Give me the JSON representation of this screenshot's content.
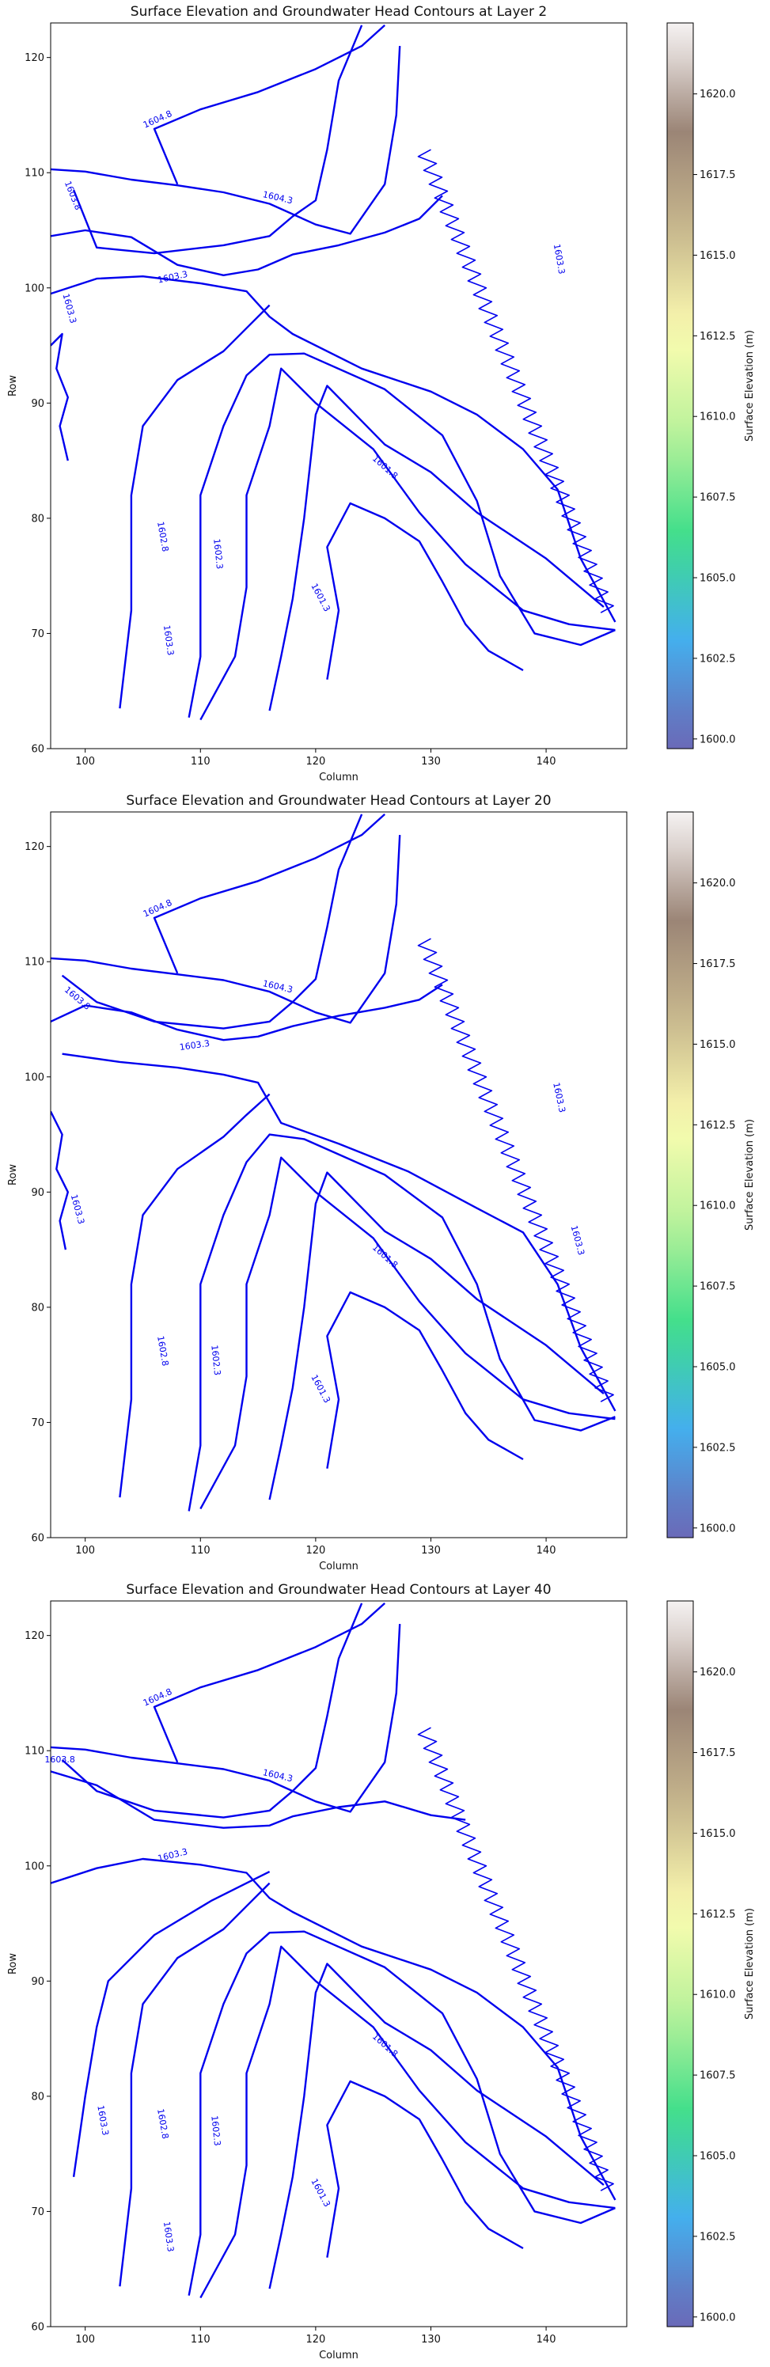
{
  "colormap": {
    "stops": [
      "#6a6ab8",
      "#43b1ee",
      "#3ede8a",
      "#b8f29a",
      "#fdfdb1",
      "#c9b98e",
      "#9b8476",
      "#f5f2f2"
    ],
    "vmin": 1600.0,
    "vmax": 1622.0
  },
  "contour_color": "#0000ee",
  "chart_data": [
    {
      "type": "heatmap",
      "title": "Surface Elevation and Groundwater Head Contours at Layer 2",
      "xlabel": "Column",
      "ylabel": "Row",
      "xlim": [
        97,
        147
      ],
      "ylim": [
        60,
        123
      ],
      "xticks": [
        100,
        110,
        120,
        130,
        140
      ],
      "yticks": [
        60,
        70,
        80,
        90,
        100,
        110,
        120
      ],
      "colorbar": {
        "label": "Surface Elevation (m)",
        "range": [
          1599.7,
          1622.2
        ],
        "ticks": [
          "1600.0",
          "1602.5",
          "1605.0",
          "1607.5",
          "1610.0",
          "1612.5",
          "1615.0",
          "1617.5",
          "1620.0"
        ]
      },
      "contour_labels": [
        {
          "text": "1604.8",
          "x": 106.3,
          "y": 114.6,
          "angle": -24
        },
        {
          "text": "1604.3",
          "x": 116.7,
          "y": 107.8,
          "angle": 13
        },
        {
          "text": "1603.8",
          "x": 98.9,
          "y": 108.0,
          "angle": 68
        },
        {
          "text": "1603.3",
          "x": 107.6,
          "y": 100.9,
          "angle": -12
        },
        {
          "text": "1603.3",
          "x": 98.6,
          "y": 98.2,
          "angle": 75
        },
        {
          "text": "1603.3",
          "x": 141.1,
          "y": 102.5,
          "angle": 80
        },
        {
          "text": "1601.8",
          "x": 126.0,
          "y": 84.4,
          "angle": 42
        },
        {
          "text": "1602.8",
          "x": 106.7,
          "y": 78.4,
          "angle": 80
        },
        {
          "text": "1602.3",
          "x": 111.5,
          "y": 76.9,
          "angle": 84
        },
        {
          "text": "1603.3",
          "x": 107.2,
          "y": 69.4,
          "angle": 82
        },
        {
          "text": "1601.3",
          "x": 120.4,
          "y": 73.1,
          "angle": 62
        }
      ]
    },
    {
      "type": "heatmap",
      "title": "Surface Elevation and Groundwater Head Contours at Layer 20",
      "xlabel": "Column",
      "ylabel": "Row",
      "xlim": [
        97,
        147
      ],
      "ylim": [
        60,
        123
      ],
      "xticks": [
        100,
        110,
        120,
        130,
        140
      ],
      "yticks": [
        60,
        70,
        80,
        90,
        100,
        110,
        120
      ],
      "colorbar": {
        "label": "Surface Elevation (m)",
        "range": [
          1599.7,
          1622.2
        ],
        "ticks": [
          "1600.0",
          "1602.5",
          "1605.0",
          "1607.5",
          "1610.0",
          "1612.5",
          "1615.0",
          "1617.5",
          "1620.0"
        ]
      },
      "contour_labels": [
        {
          "text": "1604.8",
          "x": 106.3,
          "y": 114.6,
          "angle": -24
        },
        {
          "text": "1604.3",
          "x": 116.7,
          "y": 107.8,
          "angle": 13
        },
        {
          "text": "1603.8",
          "x": 99.3,
          "y": 106.8,
          "angle": 40
        },
        {
          "text": "1603.3",
          "x": 109.5,
          "y": 102.7,
          "angle": -8
        },
        {
          "text": "1603.3",
          "x": 141.1,
          "y": 98.2,
          "angle": 78
        },
        {
          "text": "1603.3",
          "x": 99.3,
          "y": 88.5,
          "angle": 75
        },
        {
          "text": "1603.3",
          "x": 142.7,
          "y": 85.8,
          "angle": 75
        },
        {
          "text": "1601.8",
          "x": 126.0,
          "y": 84.4,
          "angle": 42
        },
        {
          "text": "1602.8",
          "x": 106.7,
          "y": 76.2,
          "angle": 80
        },
        {
          "text": "1602.3",
          "x": 111.3,
          "y": 75.4,
          "angle": 84
        },
        {
          "text": "1601.3",
          "x": 120.4,
          "y": 72.9,
          "angle": 62
        }
      ]
    },
    {
      "type": "heatmap",
      "title": "Surface Elevation and Groundwater Head Contours at Layer 40",
      "xlabel": "Column",
      "ylabel": "Row",
      "xlim": [
        97,
        147
      ],
      "ylim": [
        60,
        123
      ],
      "xticks": [
        100,
        110,
        120,
        130,
        140
      ],
      "yticks": [
        60,
        70,
        80,
        90,
        100,
        110,
        120
      ],
      "colorbar": {
        "label": "Surface Elevation (m)",
        "range": [
          1599.7,
          1622.2
        ],
        "ticks": [
          "1600.0",
          "1602.5",
          "1605.0",
          "1607.5",
          "1610.0",
          "1612.5",
          "1615.0",
          "1617.5",
          "1620.0"
        ]
      },
      "contour_labels": [
        {
          "text": "1604.8",
          "x": 106.3,
          "y": 114.6,
          "angle": -24
        },
        {
          "text": "1604.3",
          "x": 116.7,
          "y": 107.8,
          "angle": 13
        },
        {
          "text": "1603.8",
          "x": 97.8,
          "y": 109.2,
          "angle": 0
        },
        {
          "text": "1603.3",
          "x": 107.6,
          "y": 100.9,
          "angle": -14
        },
        {
          "text": "1601.8",
          "x": 126.0,
          "y": 84.4,
          "angle": 42
        },
        {
          "text": "1603.3",
          "x": 101.5,
          "y": 77.9,
          "angle": 80
        },
        {
          "text": "1602.8",
          "x": 106.7,
          "y": 77.6,
          "angle": 80
        },
        {
          "text": "1602.3",
          "x": 111.3,
          "y": 77.0,
          "angle": 84
        },
        {
          "text": "1603.3",
          "x": 107.2,
          "y": 67.8,
          "angle": 82
        },
        {
          "text": "1601.3",
          "x": 120.4,
          "y": 71.6,
          "angle": 62
        }
      ]
    }
  ]
}
